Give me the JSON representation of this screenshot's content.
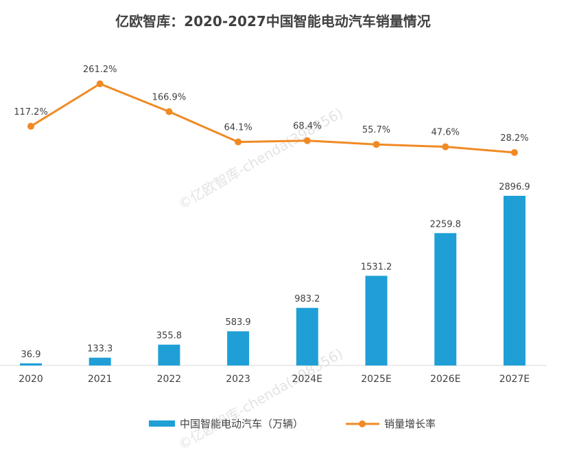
{
  "chart_data": {
    "type": "bar+line",
    "title": "亿欧智库：2020-2027中国智能电动汽车销量情况",
    "categories": [
      "2020",
      "2021",
      "2022",
      "2023",
      "2024E",
      "2025E",
      "2026E",
      "2027E"
    ],
    "series": [
      {
        "name": "中国智能电动汽车（万辆）",
        "type": "bar",
        "color": "#1f9fd6",
        "values": [
          36.9,
          133.3,
          355.8,
          583.9,
          983.2,
          1531.2,
          2259.8,
          2896.9
        ],
        "labels": [
          "36.9",
          "133.3",
          "355.8",
          "583.9",
          "983.2",
          "1531.2",
          "2259.8",
          "2896.9"
        ]
      },
      {
        "name": "销量增长率",
        "type": "line",
        "color": "#f08a24",
        "values": [
          117.2,
          261.2,
          166.9,
          64.1,
          68.4,
          55.7,
          47.6,
          28.2
        ],
        "labels": [
          "117.2%",
          "261.2%",
          "166.9%",
          "64.1%",
          "68.4%",
          "55.7%",
          "47.6%",
          "28.2%"
        ]
      }
    ],
    "legend_position": "bottom",
    "grid": false
  },
  "watermark": "©亿欧智库-chenda(398356)"
}
